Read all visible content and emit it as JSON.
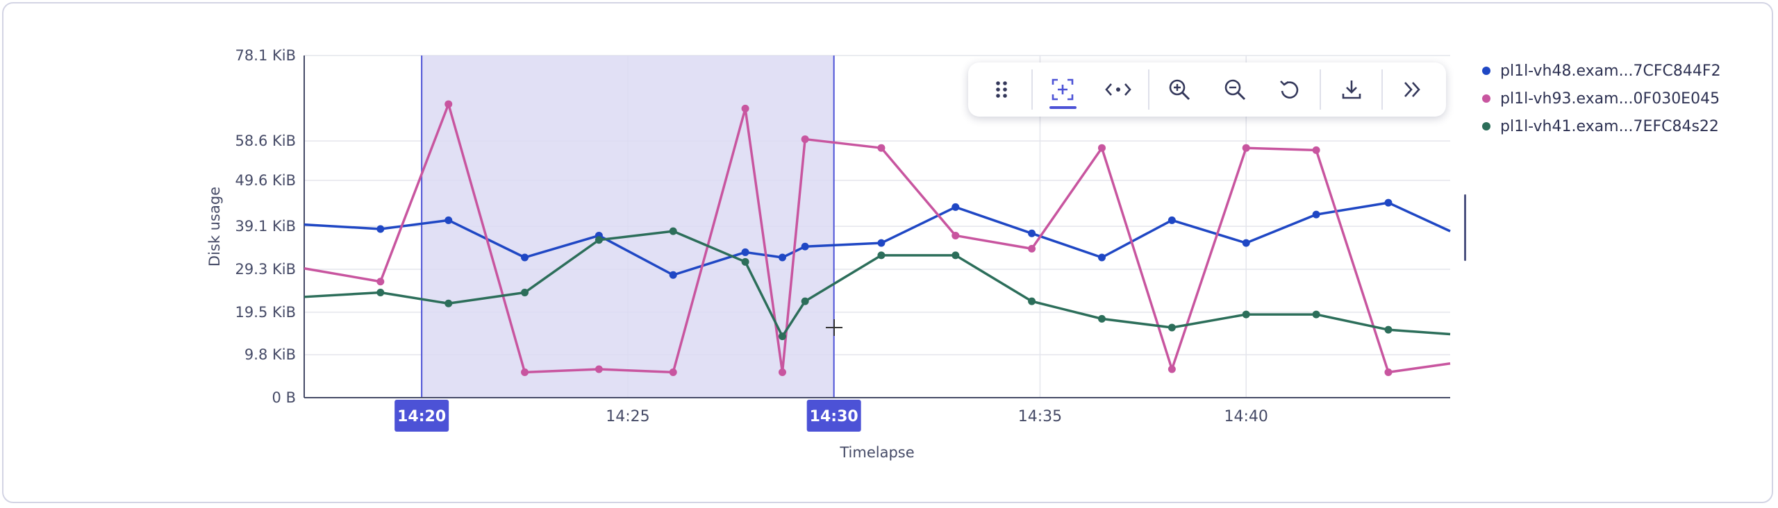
{
  "chart_data": {
    "type": "line",
    "title": "",
    "xlabel": "Timelapse",
    "ylabel": "Disk usage",
    "y_ticks": [
      "0 B",
      "9.8 KiB",
      "19.5 KiB",
      "29.3 KiB",
      "39.1 KiB",
      "49.6 KiB",
      "58.6 KiB",
      "78.1 KiB"
    ],
    "y_tick_values": [
      0,
      9.8,
      19.5,
      29.3,
      39.1,
      49.6,
      58.6,
      78.1
    ],
    "y_unit": "KiB",
    "ylim": [
      0,
      78.1
    ],
    "x_ticks": [
      "14:20",
      "14:25",
      "14:30",
      "14:35",
      "14:40"
    ],
    "x_tick_minutes": [
      20,
      25,
      30,
      35,
      40
    ],
    "x_highlighted_ticks": [
      "14:20",
      "14:30"
    ],
    "xlim_minutes": [
      17.15,
      44.95
    ],
    "selection_range_minutes": [
      20,
      30
    ],
    "grid": true,
    "legend_position": "right",
    "series": [
      {
        "name": "pl1l-vh48.exam...7CFC844F2",
        "color": "#1f47c4",
        "x": [
          17.15,
          19.0,
          20.65,
          22.5,
          24.3,
          26.1,
          27.85,
          28.75,
          29.3,
          31.15,
          32.95,
          34.8,
          36.5,
          38.2,
          40.0,
          41.7,
          43.45,
          44.95
        ],
        "y": [
          39.5,
          38.5,
          40.5,
          32.0,
          37.0,
          28.0,
          33.2,
          32.0,
          34.5,
          35.3,
          43.5,
          37.5,
          32.0,
          40.5,
          35.3,
          41.8,
          44.5,
          38.0
        ]
      },
      {
        "name": "pl1l-vh93.exam...0F030E045",
        "color": "#c8559f",
        "x": [
          17.15,
          19.0,
          20.65,
          22.5,
          24.3,
          26.1,
          27.85,
          28.75,
          29.3,
          31.15,
          32.95,
          34.8,
          36.5,
          38.2,
          40.0,
          41.7,
          43.45,
          44.95
        ],
        "y": [
          29.5,
          26.5,
          67.0,
          5.8,
          6.5,
          5.8,
          66.0,
          5.8,
          59.0,
          57.0,
          37.0,
          34.0,
          57.0,
          6.5,
          57.0,
          56.5,
          5.8,
          7.8
        ]
      },
      {
        "name": "pl1l-vh41.exam...7EFC84s22",
        "color": "#2c6e5a",
        "x": [
          17.15,
          19.0,
          20.65,
          22.5,
          24.3,
          26.1,
          27.85,
          28.75,
          29.3,
          31.15,
          32.95,
          34.8,
          36.5,
          38.2,
          40.0,
          41.7,
          43.45,
          44.95
        ],
        "y": [
          23.0,
          24.0,
          21.5,
          24.0,
          36.0,
          38.0,
          31.0,
          14.0,
          22.0,
          32.5,
          32.5,
          22.0,
          18.0,
          16.0,
          19.0,
          19.0,
          15.5,
          14.5
        ]
      }
    ]
  },
  "toolbar": {
    "buttons": [
      {
        "icon": "drag-handle-icon",
        "active": false
      },
      {
        "icon": "select-zoom-icon",
        "active": true
      },
      {
        "icon": "pan-icon",
        "active": false
      },
      {
        "icon": "zoom-in-icon",
        "active": false
      },
      {
        "icon": "zoom-out-icon",
        "active": false
      },
      {
        "icon": "reset-icon",
        "active": false
      },
      {
        "icon": "download-icon",
        "active": false
      },
      {
        "icon": "expand-icon",
        "active": false
      }
    ]
  },
  "colors": {
    "accent": "#4c52d6",
    "selection_fill": "#dcdbf3",
    "grid": "#e4e5ec",
    "axis": "#454a66"
  }
}
